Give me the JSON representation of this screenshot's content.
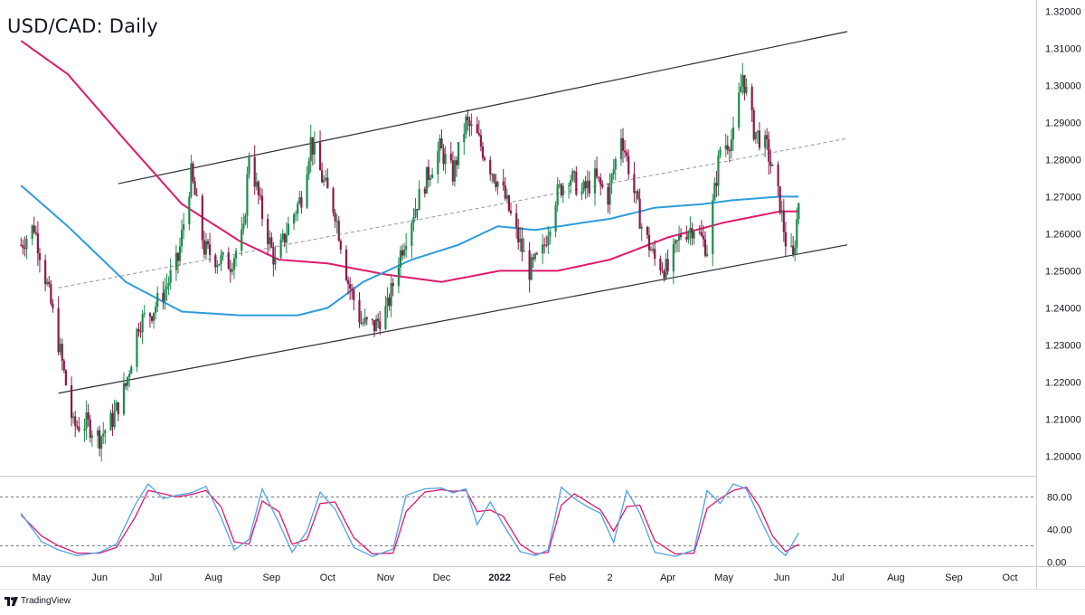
{
  "title": "USD/CAD: Daily",
  "brand": "TradingView",
  "colors": {
    "up": "#1e8a4e",
    "down": "#8b1a4a",
    "ma_short": "#2d9cdb",
    "ma_long": "#e0186c",
    "channel": "#2a2e39",
    "stoch_k": "#4fa3e6",
    "stoch_d": "#e0186c"
  },
  "chart_data": [
    {
      "type": "line",
      "title": "USD/CAD: Daily",
      "ylim": [
        1.195,
        1.323
      ],
      "y_ticks": [
        "1.32000",
        "1.31000",
        "1.30000",
        "1.29000",
        "1.28000",
        "1.27000",
        "1.26000",
        "1.25000",
        "1.24000",
        "1.23000",
        "1.22000",
        "1.21000",
        "1.20000"
      ],
      "x_ticks": [
        "May",
        "Jun",
        "Jul",
        "Aug",
        "Sep",
        "Oct",
        "Nov",
        "Dec",
        "2022",
        "Feb",
        "2",
        "Apr",
        "May",
        "Jun",
        "Jul",
        "Aug",
        "Sep",
        "Oct"
      ],
      "x_tick_dates": [
        "2021-05-01",
        "2021-06-01",
        "2021-07-01",
        "2021-08-01",
        "2021-09-01",
        "2021-10-01",
        "2021-11-01",
        "2021-12-01",
        "2022-01-01",
        "2022-02-01",
        "2022-03-01",
        "2022-04-01",
        "2022-05-01",
        "2022-06-01",
        "2022-07-01",
        "2022-08-01",
        "2022-09-01",
        "2022-10-01"
      ],
      "price_path": [
        [
          "2021-04-20",
          1.257
        ],
        [
          "2021-04-27",
          1.262
        ],
        [
          "2021-05-04",
          1.246
        ],
        [
          "2021-05-11",
          1.228
        ],
        [
          "2021-05-18",
          1.208
        ],
        [
          "2021-05-25",
          1.209
        ],
        [
          "2021-06-01",
          1.205
        ],
        [
          "2021-06-08",
          1.21
        ],
        [
          "2021-06-15",
          1.219
        ],
        [
          "2021-06-22",
          1.236
        ],
        [
          "2021-06-29",
          1.239
        ],
        [
          "2021-07-06",
          1.245
        ],
        [
          "2021-07-13",
          1.253
        ],
        [
          "2021-07-20",
          1.276
        ],
        [
          "2021-07-27",
          1.256
        ],
        [
          "2021-08-03",
          1.253
        ],
        [
          "2021-08-10",
          1.252
        ],
        [
          "2021-08-17",
          1.26
        ],
        [
          "2021-08-20",
          1.282
        ],
        [
          "2021-08-27",
          1.265
        ],
        [
          "2021-09-03",
          1.252
        ],
        [
          "2021-09-10",
          1.262
        ],
        [
          "2021-09-17",
          1.27
        ],
        [
          "2021-09-22",
          1.285
        ],
        [
          "2021-09-28",
          1.275
        ],
        [
          "2021-10-05",
          1.266
        ],
        [
          "2021-10-12",
          1.247
        ],
        [
          "2021-10-19",
          1.236
        ],
        [
          "2021-10-26",
          1.235
        ],
        [
          "2021-11-02",
          1.24
        ],
        [
          "2021-11-09",
          1.255
        ],
        [
          "2021-11-16",
          1.266
        ],
        [
          "2021-11-23",
          1.275
        ],
        [
          "2021-11-30",
          1.283
        ],
        [
          "2021-12-07",
          1.276
        ],
        [
          "2021-12-14",
          1.29
        ],
        [
          "2021-12-20",
          1.286
        ],
        [
          "2021-12-27",
          1.278
        ],
        [
          "2022-01-03",
          1.271
        ],
        [
          "2022-01-10",
          1.26
        ],
        [
          "2022-01-17",
          1.25
        ],
        [
          "2022-01-24",
          1.255
        ],
        [
          "2022-01-31",
          1.27
        ],
        [
          "2022-02-07",
          1.276
        ],
        [
          "2022-02-14",
          1.271
        ],
        [
          "2022-02-21",
          1.275
        ],
        [
          "2022-02-28",
          1.27
        ],
        [
          "2022-03-07",
          1.287
        ],
        [
          "2022-03-11",
          1.278
        ],
        [
          "2022-03-18",
          1.262
        ],
        [
          "2022-03-25",
          1.253
        ],
        [
          "2022-04-01",
          1.25
        ],
        [
          "2022-04-08",
          1.26
        ],
        [
          "2022-04-15",
          1.262
        ],
        [
          "2022-04-22",
          1.256
        ],
        [
          "2022-04-29",
          1.283
        ],
        [
          "2022-05-06",
          1.286
        ],
        [
          "2022-05-11",
          1.303
        ],
        [
          "2022-05-17",
          1.288
        ],
        [
          "2022-05-24",
          1.283
        ],
        [
          "2022-05-31",
          1.268
        ],
        [
          "2022-06-03",
          1.258
        ],
        [
          "2022-06-07",
          1.253
        ],
        [
          "2022-06-10",
          1.269
        ]
      ],
      "series": [
        {
          "name": "",
          "values": [
            [
              "2021-04-20",
              1.312
            ],
            [
              "2021-05-15",
              1.303
            ],
            [
              "2021-06-15",
              1.285
            ],
            [
              "2021-07-15",
              1.268
            ],
            [
              "2021-08-15",
              1.258
            ],
            [
              "2021-09-05",
              1.253
            ],
            [
              "2021-10-01",
              1.252
            ],
            [
              "2021-11-01",
              1.249
            ],
            [
              "2021-12-01",
              1.247
            ],
            [
              "2022-01-01",
              1.25
            ],
            [
              "2022-02-01",
              1.25
            ],
            [
              "2022-03-01",
              1.253
            ],
            [
              "2022-04-01",
              1.259
            ],
            [
              "2022-05-01",
              1.263
            ],
            [
              "2022-05-31",
              1.266
            ],
            [
              "2022-06-10",
              1.266
            ]
          ]
        },
        {
          "name": "",
          "values": [
            [
              "2021-04-20",
              1.273
            ],
            [
              "2021-05-15",
              1.262
            ],
            [
              "2021-06-15",
              1.247
            ],
            [
              "2021-07-15",
              1.239
            ],
            [
              "2021-08-15",
              1.238
            ],
            [
              "2021-09-15",
              1.238
            ],
            [
              "2021-10-01",
              1.24
            ],
            [
              "2021-10-20",
              1.247
            ],
            [
              "2021-11-15",
              1.253
            ],
            [
              "2021-12-10",
              1.257
            ],
            [
              "2021-12-31",
              1.262
            ],
            [
              "2022-01-20",
              1.261
            ],
            [
              "2022-02-15",
              1.263
            ],
            [
              "2022-03-01",
              1.264
            ],
            [
              "2022-03-25",
              1.267
            ],
            [
              "2022-04-20",
              1.268
            ],
            [
              "2022-05-05",
              1.269
            ],
            [
              "2022-05-31",
              1.27
            ],
            [
              "2022-06-10",
              1.27
            ]
          ]
        }
      ],
      "channel": {
        "upper": [
          [
            "2021-06-11",
            1.2735
          ],
          [
            "2022-07-06",
            1.3145
          ]
        ],
        "lower": [
          [
            "2021-05-10",
            1.217
          ],
          [
            "2022-07-06",
            1.257
          ]
        ],
        "middle": [
          [
            "2021-05-10",
            1.2454
          ],
          [
            "2022-07-06",
            1.2857
          ]
        ]
      }
    },
    {
      "type": "line",
      "title": "",
      "ylim": [
        -5,
        105
      ],
      "y_ticks": [
        "80.00",
        "40.00",
        "0.00"
      ],
      "reference_lines": [
        80,
        20
      ],
      "series": [
        {
          "name": "",
          "values": [
            [
              "2021-04-20",
              60
            ],
            [
              "2021-05-01",
              25
            ],
            [
              "2021-05-10",
              15
            ],
            [
              "2021-05-20",
              8
            ],
            [
              "2021-06-01",
              12
            ],
            [
              "2021-06-10",
              22
            ],
            [
              "2021-06-20",
              70
            ],
            [
              "2021-06-27",
              96
            ],
            [
              "2021-07-05",
              78
            ],
            [
              "2021-07-12",
              82
            ],
            [
              "2021-07-20",
              85
            ],
            [
              "2021-07-28",
              93
            ],
            [
              "2021-08-05",
              55
            ],
            [
              "2021-08-12",
              15
            ],
            [
              "2021-08-20",
              28
            ],
            [
              "2021-08-27",
              90
            ],
            [
              "2021-09-05",
              48
            ],
            [
              "2021-09-12",
              12
            ],
            [
              "2021-09-20",
              38
            ],
            [
              "2021-09-27",
              86
            ],
            [
              "2021-10-05",
              65
            ],
            [
              "2021-10-15",
              18
            ],
            [
              "2021-10-25",
              7
            ],
            [
              "2021-11-05",
              16
            ],
            [
              "2021-11-12",
              82
            ],
            [
              "2021-11-22",
              90
            ],
            [
              "2021-12-01",
              91
            ],
            [
              "2021-12-07",
              85
            ],
            [
              "2021-12-14",
              90
            ],
            [
              "2021-12-20",
              46
            ],
            [
              "2021-12-27",
              74
            ],
            [
              "2022-01-03",
              46
            ],
            [
              "2022-01-12",
              13
            ],
            [
              "2022-01-20",
              8
            ],
            [
              "2022-01-27",
              15
            ],
            [
              "2022-02-03",
              92
            ],
            [
              "2022-02-10",
              78
            ],
            [
              "2022-02-17",
              68
            ],
            [
              "2022-02-24",
              60
            ],
            [
              "2022-03-03",
              24
            ],
            [
              "2022-03-10",
              88
            ],
            [
              "2022-03-17",
              60
            ],
            [
              "2022-03-25",
              12
            ],
            [
              "2022-04-05",
              7
            ],
            [
              "2022-04-15",
              15
            ],
            [
              "2022-04-22",
              88
            ],
            [
              "2022-04-29",
              72
            ],
            [
              "2022-05-06",
              96
            ],
            [
              "2022-05-13",
              90
            ],
            [
              "2022-05-20",
              55
            ],
            [
              "2022-05-27",
              22
            ],
            [
              "2022-06-03",
              8
            ],
            [
              "2022-06-10",
              36
            ]
          ]
        },
        {
          "name": "",
          "values": [
            [
              "2021-04-20",
              58
            ],
            [
              "2021-05-01",
              32
            ],
            [
              "2021-05-10",
              20
            ],
            [
              "2021-05-20",
              11
            ],
            [
              "2021-06-01",
              11
            ],
            [
              "2021-06-10",
              18
            ],
            [
              "2021-06-20",
              55
            ],
            [
              "2021-06-27",
              88
            ],
            [
              "2021-07-05",
              84
            ],
            [
              "2021-07-12",
              80
            ],
            [
              "2021-07-20",
              83
            ],
            [
              "2021-07-28",
              88
            ],
            [
              "2021-08-05",
              68
            ],
            [
              "2021-08-12",
              25
            ],
            [
              "2021-08-20",
              22
            ],
            [
              "2021-08-27",
              75
            ],
            [
              "2021-09-05",
              62
            ],
            [
              "2021-09-12",
              22
            ],
            [
              "2021-09-20",
              28
            ],
            [
              "2021-09-27",
              72
            ],
            [
              "2021-10-05",
              74
            ],
            [
              "2021-10-15",
              30
            ],
            [
              "2021-10-25",
              10
            ],
            [
              "2021-11-05",
              11
            ],
            [
              "2021-11-12",
              62
            ],
            [
              "2021-11-22",
              86
            ],
            [
              "2021-12-01",
              89
            ],
            [
              "2021-12-07",
              87
            ],
            [
              "2021-12-14",
              88
            ],
            [
              "2021-12-20",
              62
            ],
            [
              "2021-12-27",
              64
            ],
            [
              "2022-01-03",
              56
            ],
            [
              "2022-01-12",
              22
            ],
            [
              "2022-01-20",
              10
            ],
            [
              "2022-01-27",
              12
            ],
            [
              "2022-02-03",
              70
            ],
            [
              "2022-02-10",
              84
            ],
            [
              "2022-02-17",
              74
            ],
            [
              "2022-02-24",
              64
            ],
            [
              "2022-03-03",
              38
            ],
            [
              "2022-03-10",
              68
            ],
            [
              "2022-03-17",
              70
            ],
            [
              "2022-03-25",
              26
            ],
            [
              "2022-04-05",
              10
            ],
            [
              "2022-04-15",
              11
            ],
            [
              "2022-04-22",
              66
            ],
            [
              "2022-04-29",
              78
            ],
            [
              "2022-05-06",
              88
            ],
            [
              "2022-05-13",
              92
            ],
            [
              "2022-05-20",
              68
            ],
            [
              "2022-05-27",
              32
            ],
            [
              "2022-06-03",
              13
            ],
            [
              "2022-06-10",
              22
            ]
          ]
        }
      ]
    }
  ]
}
